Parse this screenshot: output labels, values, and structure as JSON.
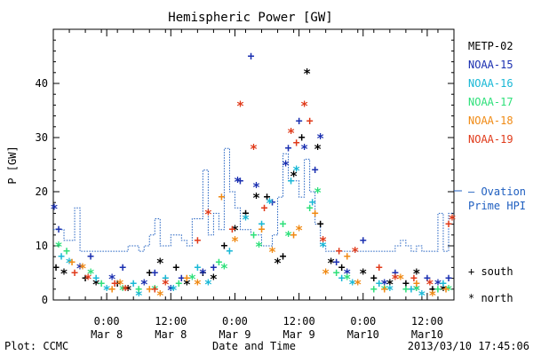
{
  "footer": {
    "left": "Plot: CCMC",
    "right": "2013/03/10 17:45:06"
  },
  "chart_data": {
    "type": "scatter",
    "title": "Hemispheric Power [GW]",
    "xlabel": "Date and Time",
    "ylabel": "P [GW]",
    "xlim": [
      "2013-03-07 14:00",
      "2013-03-10 17:00"
    ],
    "ylim": [
      0,
      50
    ],
    "y_ticks": [
      0,
      10,
      20,
      30,
      40
    ],
    "x_ticks": [
      {
        "at": "2013-03-08 00:00",
        "time": "0:00",
        "date": "Mar 8"
      },
      {
        "at": "2013-03-08 12:00",
        "time": "12:00",
        "date": "Mar 8"
      },
      {
        "at": "2013-03-09 00:00",
        "time": "0:00",
        "date": "Mar 9"
      },
      {
        "at": "2013-03-09 12:00",
        "time": "12:00",
        "date": "Mar 9"
      },
      {
        "at": "2013-03-10 00:00",
        "time": "0:00",
        "date": "Mar10"
      },
      {
        "at": "2013-03-10 12:00",
        "time": "12:00",
        "date": "Mar10"
      }
    ],
    "grid": false,
    "legend_position": "right",
    "marker_legend": [
      {
        "symbol": "+",
        "label": "south"
      },
      {
        "symbol": "*",
        "label": "north"
      }
    ],
    "ovation": {
      "name_line1": "— Ovation",
      "name_line2": "Prime HPI",
      "color": "#1f5fc0",
      "step": [
        [
          "2013-03-07 14:00",
          13
        ],
        [
          "2013-03-07 16:00",
          11
        ],
        [
          "2013-03-07 18:00",
          17
        ],
        [
          "2013-03-07 19:00",
          9
        ],
        [
          "2013-03-08 04:00",
          10
        ],
        [
          "2013-03-08 06:00",
          9
        ],
        [
          "2013-03-08 07:00",
          10
        ],
        [
          "2013-03-08 08:00",
          12
        ],
        [
          "2013-03-08 09:00",
          15
        ],
        [
          "2013-03-08 10:00",
          10
        ],
        [
          "2013-03-08 12:00",
          12
        ],
        [
          "2013-03-08 14:00",
          11
        ],
        [
          "2013-03-08 15:00",
          10
        ],
        [
          "2013-03-08 16:00",
          15
        ],
        [
          "2013-03-08 18:00",
          24
        ],
        [
          "2013-03-08 19:00",
          12
        ],
        [
          "2013-03-08 20:00",
          16
        ],
        [
          "2013-03-08 21:00",
          13
        ],
        [
          "2013-03-08 22:00",
          28
        ],
        [
          "2013-03-08 23:00",
          20
        ],
        [
          "2013-03-09 00:00",
          17
        ],
        [
          "2013-03-09 01:00",
          13
        ],
        [
          "2013-03-09 03:00",
          12
        ],
        [
          "2013-03-09 05:00",
          10
        ],
        [
          "2013-03-09 07:00",
          12
        ],
        [
          "2013-03-09 08:00",
          19
        ],
        [
          "2013-03-09 09:00",
          27
        ],
        [
          "2013-03-09 10:00",
          22
        ],
        [
          "2013-03-09 12:00",
          19
        ],
        [
          "2013-03-09 13:00",
          26
        ],
        [
          "2013-03-09 14:00",
          20
        ],
        [
          "2013-03-09 15:00",
          14
        ],
        [
          "2013-03-09 16:00",
          10
        ],
        [
          "2013-03-09 17:00",
          9
        ],
        [
          "2013-03-10 06:00",
          10
        ],
        [
          "2013-03-10 07:00",
          11
        ],
        [
          "2013-03-10 08:00",
          10
        ],
        [
          "2013-03-10 09:00",
          9
        ],
        [
          "2013-03-10 10:00",
          10
        ],
        [
          "2013-03-10 11:00",
          9
        ],
        [
          "2013-03-10 14:00",
          16
        ],
        [
          "2013-03-10 15:00",
          9
        ],
        [
          "2013-03-10 16:00",
          16
        ],
        [
          "2013-03-10 17:00",
          16
        ]
      ]
    },
    "series": [
      {
        "name": "METP-02",
        "color": "#000000",
        "south": [
          [
            "2013-03-07 14:30",
            6
          ],
          [
            "2013-03-07 20:00",
            4
          ],
          [
            "2013-03-08 02:00",
            3
          ],
          [
            "2013-03-08 08:00",
            5
          ],
          [
            "2013-03-08 13:00",
            6
          ],
          [
            "2013-03-08 18:00",
            5
          ],
          [
            "2013-03-08 22:00",
            10
          ],
          [
            "2013-03-09 02:00",
            16
          ],
          [
            "2013-03-09 06:00",
            19
          ],
          [
            "2013-03-09 09:00",
            8
          ],
          [
            "2013-03-09 12:30",
            30
          ],
          [
            "2013-03-09 16:00",
            14
          ],
          [
            "2013-03-09 20:00",
            6
          ],
          [
            "2013-03-10 02:00",
            4
          ],
          [
            "2013-03-10 08:00",
            3
          ],
          [
            "2013-03-10 13:00",
            2
          ]
        ],
        "north": [
          [
            "2013-03-07 16:00",
            5
          ],
          [
            "2013-03-07 22:00",
            3
          ],
          [
            "2013-03-08 04:00",
            2
          ],
          [
            "2013-03-08 10:00",
            7
          ],
          [
            "2013-03-08 15:00",
            3
          ],
          [
            "2013-03-08 20:00",
            4
          ],
          [
            "2013-03-09 00:00",
            13
          ],
          [
            "2013-03-09 04:00",
            19
          ],
          [
            "2013-03-09 08:00",
            7
          ],
          [
            "2013-03-09 11:00",
            23
          ],
          [
            "2013-03-09 13:30",
            42
          ],
          [
            "2013-03-09 15:30",
            28
          ],
          [
            "2013-03-09 18:00",
            7
          ],
          [
            "2013-03-10 00:00",
            5
          ],
          [
            "2013-03-10 05:00",
            3
          ],
          [
            "2013-03-10 10:00",
            5
          ],
          [
            "2013-03-10 15:00",
            2
          ]
        ]
      },
      {
        "name": "NOAA-15",
        "color": "#1a2fb0",
        "south": [
          [
            "2013-03-07 15:00",
            13
          ],
          [
            "2013-03-07 21:00",
            8
          ],
          [
            "2013-03-08 03:00",
            6
          ],
          [
            "2013-03-08 09:00",
            5
          ],
          [
            "2013-03-08 14:00",
            4
          ],
          [
            "2013-03-08 20:00",
            6
          ],
          [
            "2013-03-09 01:00",
            22
          ],
          [
            "2013-03-09 03:00",
            45
          ],
          [
            "2013-03-09 07:00",
            18
          ],
          [
            "2013-03-09 10:00",
            28
          ],
          [
            "2013-03-09 12:00",
            33
          ],
          [
            "2013-03-09 15:00",
            24
          ],
          [
            "2013-03-09 19:00",
            7
          ],
          [
            "2013-03-10 00:00",
            11
          ],
          [
            "2013-03-10 06:00",
            5
          ],
          [
            "2013-03-10 12:00",
            4
          ],
          [
            "2013-03-10 16:00",
            4
          ]
        ],
        "north": [
          [
            "2013-03-07 14:10",
            17
          ],
          [
            "2013-03-07 19:00",
            6
          ],
          [
            "2013-03-08 01:00",
            4
          ],
          [
            "2013-03-08 07:00",
            3
          ],
          [
            "2013-03-08 12:00",
            2
          ],
          [
            "2013-03-08 18:00",
            5
          ],
          [
            "2013-03-09 00:30",
            22
          ],
          [
            "2013-03-09 04:00",
            21
          ],
          [
            "2013-03-09 09:30",
            25
          ],
          [
            "2013-03-09 13:00",
            28
          ],
          [
            "2013-03-09 16:00",
            30
          ],
          [
            "2013-03-09 21:00",
            5
          ],
          [
            "2013-03-10 04:00",
            3
          ],
          [
            "2013-03-10 10:00",
            2
          ],
          [
            "2013-03-10 14:00",
            3
          ]
        ]
      },
      {
        "name": "NOAA-16",
        "color": "#19b8d6",
        "south": [
          [
            "2013-03-07 15:30",
            8
          ],
          [
            "2013-03-07 22:00",
            4
          ],
          [
            "2013-03-08 05:00",
            3
          ],
          [
            "2013-03-08 11:00",
            4
          ],
          [
            "2013-03-08 17:00",
            6
          ],
          [
            "2013-03-08 23:00",
            9
          ],
          [
            "2013-03-09 05:00",
            14
          ],
          [
            "2013-03-09 10:30",
            22
          ],
          [
            "2013-03-09 14:30",
            18
          ],
          [
            "2013-03-09 20:00",
            4
          ],
          [
            "2013-03-10 03:00",
            3
          ],
          [
            "2013-03-10 09:00",
            2
          ],
          [
            "2013-03-10 15:00",
            3
          ]
        ],
        "north": [
          [
            "2013-03-07 17:00",
            7
          ],
          [
            "2013-03-08 00:00",
            2
          ],
          [
            "2013-03-08 06:00",
            1
          ],
          [
            "2013-03-08 12:30",
            2
          ],
          [
            "2013-03-08 19:00",
            3
          ],
          [
            "2013-03-09 02:00",
            15
          ],
          [
            "2013-03-09 06:30",
            18
          ],
          [
            "2013-03-09 11:30",
            24
          ],
          [
            "2013-03-09 16:30",
            10
          ],
          [
            "2013-03-09 22:00",
            3
          ],
          [
            "2013-03-10 05:00",
            2
          ],
          [
            "2013-03-10 11:00",
            1
          ]
        ]
      },
      {
        "name": "NOAA-17",
        "color": "#2ee07a",
        "south": [
          [
            "2013-03-07 16:30",
            9
          ],
          [
            "2013-03-07 23:00",
            3
          ],
          [
            "2013-03-08 06:00",
            2
          ],
          [
            "2013-03-08 13:30",
            3
          ],
          [
            "2013-03-08 21:00",
            7
          ],
          [
            "2013-03-09 03:30",
            12
          ],
          [
            "2013-03-09 09:00",
            14
          ],
          [
            "2013-03-09 14:00",
            17
          ],
          [
            "2013-03-09 19:00",
            5
          ],
          [
            "2013-03-10 02:00",
            2
          ],
          [
            "2013-03-10 08:00",
            2
          ],
          [
            "2013-03-10 14:00",
            2
          ]
        ],
        "north": [
          [
            "2013-03-07 15:00",
            10
          ],
          [
            "2013-03-07 21:00",
            5
          ],
          [
            "2013-03-08 03:00",
            2
          ],
          [
            "2013-03-08 09:00",
            2
          ],
          [
            "2013-03-08 16:00",
            4
          ],
          [
            "2013-03-08 22:00",
            6
          ],
          [
            "2013-03-09 04:30",
            10
          ],
          [
            "2013-03-09 10:00",
            12
          ],
          [
            "2013-03-09 15:30",
            20
          ],
          [
            "2013-03-09 21:00",
            4
          ],
          [
            "2013-03-10 04:00",
            2
          ],
          [
            "2013-03-10 10:00",
            2
          ],
          [
            "2013-03-10 16:00",
            2
          ]
        ]
      },
      {
        "name": "NOAA-18",
        "color": "#f08a14",
        "south": [
          [
            "2013-03-07 17:30",
            7
          ],
          [
            "2013-03-08 01:00",
            2
          ],
          [
            "2013-03-08 08:00",
            2
          ],
          [
            "2013-03-08 15:00",
            4
          ],
          [
            "2013-03-08 21:30",
            19
          ],
          [
            "2013-03-09 05:00",
            13
          ],
          [
            "2013-03-09 11:00",
            12
          ],
          [
            "2013-03-09 15:00",
            16
          ],
          [
            "2013-03-09 21:00",
            8
          ],
          [
            "2013-03-10 04:00",
            2
          ],
          [
            "2013-03-10 10:00",
            3
          ],
          [
            "2013-03-10 15:30",
            2
          ]
        ],
        "north": [
          [
            "2013-03-07 19:30",
            6
          ],
          [
            "2013-03-08 02:30",
            3
          ],
          [
            "2013-03-08 10:00",
            1
          ],
          [
            "2013-03-08 17:00",
            3
          ],
          [
            "2013-03-09 00:00",
            11
          ],
          [
            "2013-03-09 07:00",
            9
          ],
          [
            "2013-03-09 12:00",
            13
          ],
          [
            "2013-03-09 17:00",
            5
          ],
          [
            "2013-03-09 23:00",
            3
          ],
          [
            "2013-03-10 07:00",
            4
          ],
          [
            "2013-03-10 13:00",
            1
          ]
        ]
      },
      {
        "name": "NOAA-19",
        "color": "#e03a1a",
        "south": [
          [
            "2013-03-07 18:00",
            5
          ],
          [
            "2013-03-08 01:30",
            3
          ],
          [
            "2013-03-08 09:00",
            2
          ],
          [
            "2013-03-08 17:00",
            11
          ],
          [
            "2013-03-08 23:30",
            13
          ],
          [
            "2013-03-09 05:30",
            17
          ],
          [
            "2013-03-09 11:30",
            29
          ],
          [
            "2013-03-09 14:00",
            33
          ],
          [
            "2013-03-09 19:30",
            9
          ],
          [
            "2013-03-10 03:00",
            6
          ],
          [
            "2013-03-10 09:30",
            4
          ],
          [
            "2013-03-10 16:00",
            14
          ]
        ],
        "north": [
          [
            "2013-03-07 20:30",
            4
          ],
          [
            "2013-03-08 03:30",
            2
          ],
          [
            "2013-03-08 11:00",
            3
          ],
          [
            "2013-03-08 19:00",
            16
          ],
          [
            "2013-03-09 01:00",
            36
          ],
          [
            "2013-03-09 03:30",
            28
          ],
          [
            "2013-03-09 10:30",
            31
          ],
          [
            "2013-03-09 13:00",
            36
          ],
          [
            "2013-03-09 16:30",
            11
          ],
          [
            "2013-03-09 22:30",
            9
          ],
          [
            "2013-03-10 06:00",
            4
          ],
          [
            "2013-03-10 12:30",
            3
          ],
          [
            "2013-03-10 16:40",
            15
          ]
        ]
      }
    ]
  }
}
